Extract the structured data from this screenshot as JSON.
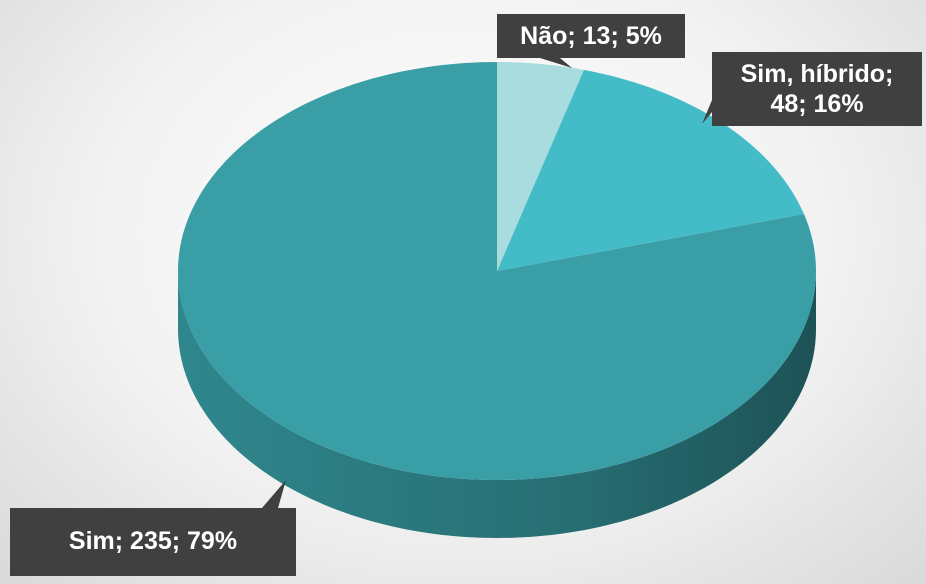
{
  "chart_data": {
    "type": "pie",
    "values": [
      13,
      48,
      235
    ],
    "value_labels": [
      "Não; 13; 5%",
      "Sim, híbrido; 48; 16%",
      "Sim; 235; 79%"
    ],
    "colors": [
      "#a8dcdf",
      "#44bcc7",
      "#3a9ea6"
    ]
  }
}
